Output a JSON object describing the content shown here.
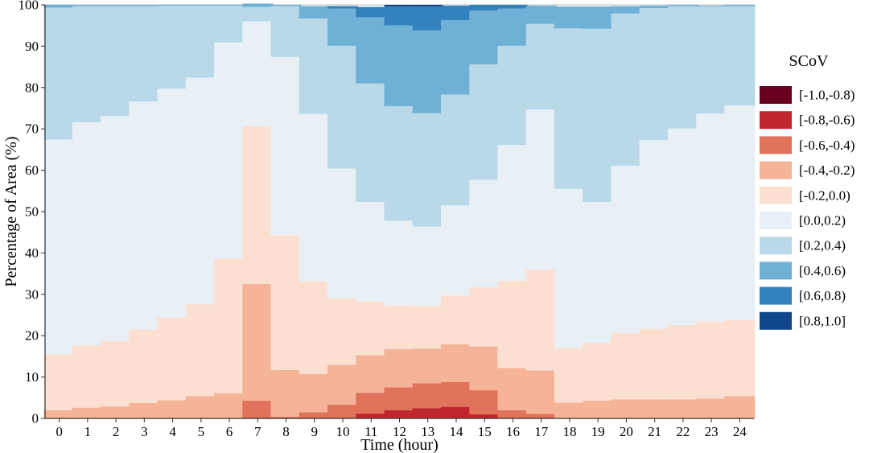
{
  "chart_data": {
    "type": "bar",
    "stacked": true,
    "title": "",
    "xlabel": "Time (hour)",
    "ylabel": "Percentage of Area (%)",
    "ylim": [
      0,
      100
    ],
    "yticks": [
      0,
      10,
      20,
      30,
      40,
      50,
      60,
      70,
      80,
      90,
      100
    ],
    "grid": false,
    "legend_position": "right",
    "legend_title": "SCoV",
    "categories": [
      "0",
      "1",
      "2",
      "3",
      "4",
      "5",
      "6",
      "7",
      "8",
      "9",
      "10",
      "11",
      "12",
      "13",
      "14",
      "15",
      "16",
      "17",
      "18",
      "19",
      "20",
      "21",
      "22",
      "23",
      "24"
    ],
    "series": [
      {
        "name": "[-1.0,-0.8)",
        "color": "#67001f",
        "values": [
          0,
          0,
          0,
          0,
          0,
          0,
          0,
          0,
          0,
          0,
          0,
          0,
          0,
          0,
          0,
          0,
          0,
          0,
          0,
          0,
          0,
          0,
          0,
          0,
          0
        ]
      },
      {
        "name": "[-0.8,-0.6)",
        "color": "#c0272d",
        "values": [
          0,
          0,
          0,
          0,
          0,
          0,
          0,
          0,
          0,
          0,
          0,
          1.2,
          2.0,
          2.5,
          2.8,
          1.0,
          0,
          0,
          0,
          0,
          0,
          0,
          0,
          0,
          0
        ]
      },
      {
        "name": "[-0.6,-0.4)",
        "color": "#e0735a",
        "values": [
          0,
          0,
          0,
          0,
          0,
          0,
          0,
          4.3,
          0.4,
          1.5,
          3.3,
          5.0,
          5.5,
          6.0,
          6.0,
          5.8,
          2.0,
          1.1,
          0,
          0,
          0,
          0,
          0,
          0,
          0
        ]
      },
      {
        "name": "[-0.4,-0.2)",
        "color": "#f5b397",
        "values": [
          2.0,
          2.6,
          2.9,
          3.7,
          4.4,
          5.4,
          6.1,
          28.2,
          11.3,
          9.2,
          9.7,
          9.1,
          9.3,
          8.4,
          9.1,
          10.6,
          10.2,
          10.5,
          3.8,
          4.3,
          4.6,
          4.6,
          4.6,
          4.8,
          5.4
        ]
      },
      {
        "name": "[-0.2,0.0)",
        "color": "#fbe0d2",
        "values": [
          13.5,
          15.1,
          15.9,
          17.8,
          20.0,
          22.2,
          32.5,
          38.2,
          32.6,
          22.5,
          16.1,
          13.0,
          10.5,
          10.3,
          11.8,
          14.3,
          21.1,
          24.4,
          13.2,
          14.0,
          16.1,
          17.1,
          18.0,
          18.6,
          18.4
        ]
      },
      {
        "name": "[0.0,0.2)",
        "color": "#e9f0f5",
        "values": [
          51.9,
          53.9,
          54.3,
          55.1,
          55.3,
          54.8,
          52.3,
          25.3,
          43.1,
          40.4,
          31.3,
          24.0,
          20.5,
          19.2,
          21.8,
          26.0,
          32.8,
          38.7,
          38.5,
          34.0,
          40.4,
          45.6,
          47.5,
          50.3,
          51.9
        ]
      },
      {
        "name": "[0.2,0.4)",
        "color": "#b9d8e8",
        "values": [
          31.9,
          28.1,
          26.6,
          23.1,
          20.1,
          17.4,
          8.9,
          3.5,
          12.3,
          23.1,
          29.7,
          28.7,
          27.7,
          27.4,
          26.8,
          27.9,
          24.0,
          20.7,
          38.8,
          41.9,
          36.8,
          31.9,
          29.6,
          25.9,
          24.0
        ]
      },
      {
        "name": "[0.4,0.6)",
        "color": "#6fb0d6",
        "values": [
          0.7,
          0.3,
          0.3,
          0.3,
          0.2,
          0.2,
          0.2,
          0.8,
          0.3,
          3.0,
          9.0,
          16.0,
          19.5,
          20.0,
          18.0,
          13.0,
          9.0,
          4.4,
          5.3,
          5.4,
          1.8,
          0.6,
          0.3,
          0.2,
          0.3
        ]
      },
      {
        "name": "[0.6,0.8)",
        "color": "#3482bd",
        "values": [
          0,
          0,
          0,
          0,
          0,
          0,
          0,
          0,
          0,
          0,
          0.6,
          2.5,
          4.6,
          5.8,
          3.5,
          1.4,
          0.9,
          0,
          0,
          0,
          0,
          0,
          0,
          0,
          0
        ]
      },
      {
        "name": "[0.8,1.0]",
        "color": "#10478a",
        "values": [
          0,
          0,
          0,
          0,
          0,
          0,
          0,
          0,
          0,
          0,
          0,
          0,
          0.4,
          0.4,
          0,
          0,
          0,
          0,
          0,
          0,
          0,
          0,
          0,
          0,
          0
        ]
      }
    ]
  }
}
